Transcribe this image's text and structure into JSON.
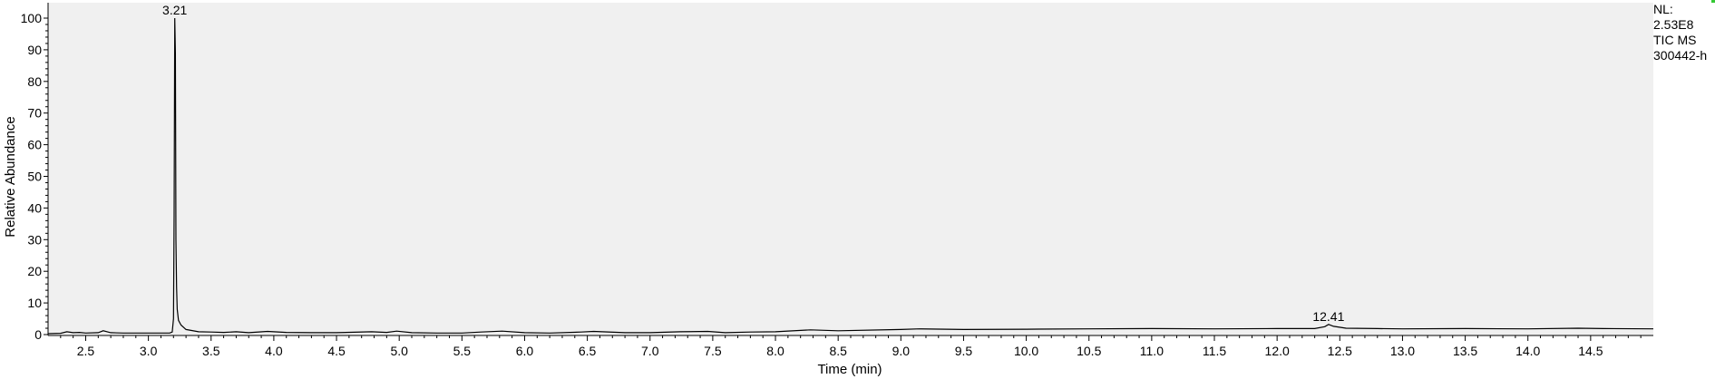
{
  "info": {
    "nl_label": "NL:",
    "nl_value": "2.53E8",
    "trace_type": "TIC  MS",
    "sample_id": "300442-h"
  },
  "colors": {
    "plot_bg": "#f0f0f0",
    "trace": "#000000",
    "corner_mark": "#35c935"
  },
  "chart_data": {
    "type": "line",
    "xlabel": "Time (min)",
    "ylabel": "Relative Abundance",
    "xlim": [
      2.2,
      15.0
    ],
    "ylim": [
      0,
      100
    ],
    "grid": false,
    "x_ticks": [
      "2.5",
      "3.0",
      "3.5",
      "4.0",
      "4.5",
      "5.0",
      "5.5",
      "6.0",
      "6.5",
      "7.0",
      "7.5",
      "8.0",
      "8.5",
      "9.0",
      "9.5",
      "10.0",
      "10.5",
      "11.0",
      "11.5",
      "12.0",
      "12.5",
      "13.0",
      "13.5",
      "14.0",
      "14.5"
    ],
    "y_ticks": [
      "0",
      "10",
      "20",
      "30",
      "40",
      "50",
      "60",
      "70",
      "80",
      "90",
      "100"
    ],
    "peak_labels": [
      {
        "label": "3.21",
        "x": 3.21,
        "y": 100
      },
      {
        "label": "12.41",
        "x": 12.41,
        "y": 3.2
      }
    ],
    "series": [
      {
        "x": [
          2.2,
          2.3,
          2.35,
          2.4,
          2.45,
          2.5,
          2.6,
          2.64,
          2.7,
          2.8,
          2.9,
          3.0,
          3.1,
          3.17,
          3.19,
          3.2,
          3.205,
          3.21,
          3.215,
          3.22,
          3.225,
          3.23,
          3.24,
          3.26,
          3.3,
          3.4,
          3.5,
          3.6,
          3.7,
          3.8,
          3.95,
          4.0,
          4.1,
          4.3,
          4.5,
          4.78,
          4.9,
          4.98,
          5.1,
          5.3,
          5.5,
          5.65,
          5.82,
          6.0,
          6.2,
          6.45,
          6.55,
          6.8,
          7.0,
          7.24,
          7.46,
          7.6,
          7.8,
          8.0,
          8.28,
          8.5,
          9.0,
          9.15,
          9.5,
          10.0,
          10.5,
          11.0,
          11.5,
          12.0,
          12.3,
          12.38,
          12.41,
          12.45,
          12.55,
          12.8,
          13.0,
          13.5,
          14.0,
          14.4,
          14.6,
          15.0
        ],
        "y": [
          0.3,
          0.4,
          0.9,
          0.6,
          0.7,
          0.5,
          0.6,
          1.2,
          0.6,
          0.5,
          0.5,
          0.5,
          0.5,
          0.5,
          0.8,
          5,
          38,
          100,
          89,
          30,
          15,
          8,
          4.5,
          3.0,
          1.6,
          0.9,
          0.8,
          0.7,
          0.9,
          0.6,
          1.0,
          0.9,
          0.7,
          0.6,
          0.6,
          0.9,
          0.7,
          1.1,
          0.6,
          0.5,
          0.5,
          0.8,
          1.1,
          0.6,
          0.5,
          0.8,
          1.0,
          0.6,
          0.6,
          0.9,
          1.0,
          0.6,
          0.8,
          0.9,
          1.5,
          1.2,
          1.6,
          1.8,
          1.6,
          1.7,
          1.8,
          1.9,
          1.8,
          1.9,
          1.9,
          2.5,
          3.2,
          2.6,
          2.0,
          1.9,
          1.8,
          1.9,
          1.8,
          2.0,
          1.9,
          1.8
        ]
      }
    ]
  }
}
